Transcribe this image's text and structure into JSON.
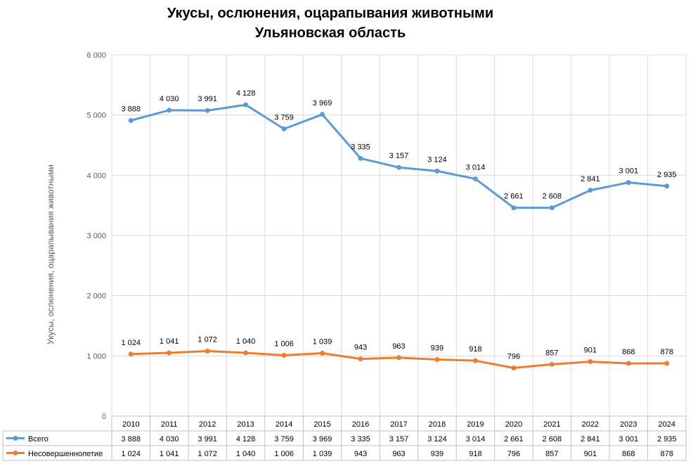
{
  "chart_data": {
    "type": "line",
    "title": "Укусы, ослюнения, оцарапывания животными",
    "subtitle": "Ульяновская область",
    "ylabel": "Укусы, ослюнения, оцарапывания животными",
    "xlabel": "",
    "ylim": [
      0,
      6000
    ],
    "y_ticks": [
      "0",
      "1 000",
      "2 000",
      "3 000",
      "4 000",
      "5 000",
      "6 000"
    ],
    "grid": true,
    "legend": "data-table",
    "categories": [
      "2010",
      "2011",
      "2012",
      "2013",
      "2014",
      "2015",
      "2016",
      "2017",
      "2018",
      "2019",
      "2020",
      "2021",
      "2022",
      "2023",
      "2024"
    ],
    "series": [
      {
        "name": "Всего",
        "color": "#5b9bd5",
        "values": [
          4910,
          5080,
          5075,
          5170,
          4770,
          5010,
          4280,
          4130,
          4070,
          3940,
          3460,
          3460,
          3750,
          3880,
          3820
        ],
        "labels": [
          "3 888",
          "4 030",
          "3 991",
          "4 128",
          "3 759",
          "3 969",
          "3 335",
          "3 157",
          "3 124",
          "3 014",
          "2 661",
          "2 608",
          "2 841",
          "3 001",
          "2 935"
        ]
      },
      {
        "name": "Несовершеннолетие",
        "color": "#ed7d31",
        "values": [
          1030,
          1050,
          1080,
          1050,
          1010,
          1045,
          950,
          970,
          940,
          920,
          800,
          860,
          905,
          875,
          875
        ],
        "labels": [
          "1 024",
          "1 041",
          "1 072",
          "1 040",
          "1 006",
          "1 039",
          "943",
          "963",
          "939",
          "918",
          "796",
          "857",
          "901",
          "868",
          "878"
        ]
      }
    ]
  }
}
